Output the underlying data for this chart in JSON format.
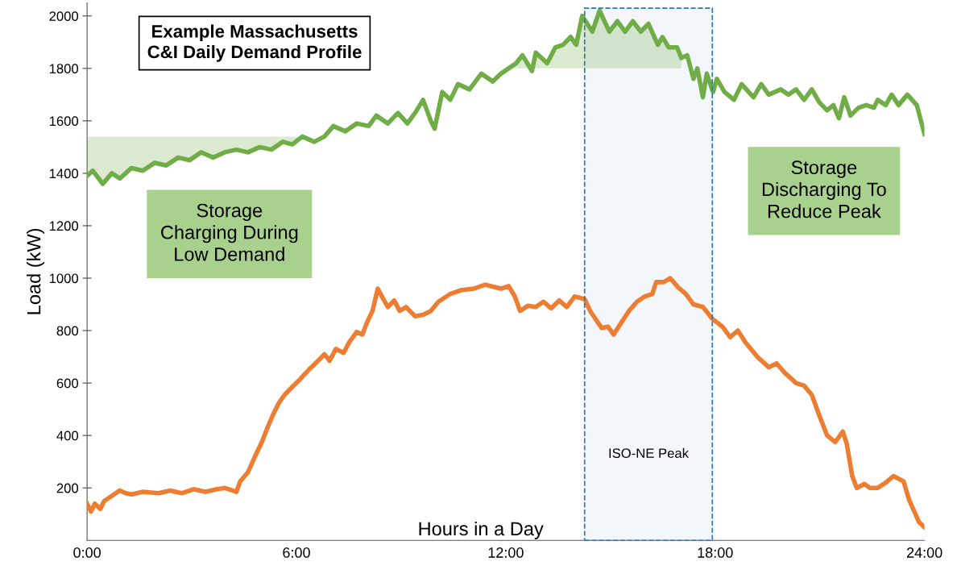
{
  "chart_data": {
    "type": "line",
    "title": "Example Massachusetts\nC&I Daily Demand Profile",
    "xlabel": "Hours in a Day",
    "ylabel": "Load (kW)",
    "annotations": [
      "Storage\nCharging During\nLow Demand",
      "Storage\nDischarging To\nReduce Peak"
    ],
    "xlim": [
      0,
      24
    ],
    "xticks": [
      {
        "value": 0,
        "label": "0:00"
      },
      {
        "value": 6,
        "label": "6:00"
      },
      {
        "value": 12,
        "label": "12:00"
      },
      {
        "value": 18,
        "label": "18:00"
      },
      {
        "value": 24,
        "label": "24:00"
      }
    ],
    "ylim": [
      0,
      2050
    ],
    "yticks": [
      200,
      400,
      600,
      800,
      1000,
      1200,
      1400,
      1600,
      1800,
      2000
    ],
    "grid": false,
    "legend": false,
    "marker": "none",
    "line_style": "solid",
    "bands": [
      {
        "axis": "x",
        "from": 14.26,
        "to": 17.92,
        "label": "ISO-NE Peak",
        "color": "#2e75b6"
      }
    ],
    "series": [
      {
        "color": "#70ad47",
        "x": [
          0,
          0.16,
          0.45,
          0.71,
          0.94,
          1.27,
          1.6,
          1.94,
          2.27,
          2.61,
          2.94,
          3.27,
          3.61,
          3.94,
          4.28,
          4.61,
          4.95,
          5.28,
          5.61,
          5.88,
          6.17,
          6.51,
          6.8,
          7.06,
          7.4,
          7.73,
          8.07,
          8.29,
          8.62,
          8.91,
          9.18,
          9.4,
          9.63,
          9.85,
          9.96,
          10.18,
          10.41,
          10.63,
          10.96,
          11.3,
          11.63,
          11.86,
          12.08,
          12.3,
          12.48,
          12.75,
          12.86,
          13.19,
          13.42,
          13.64,
          13.86,
          14.02,
          14.19,
          14.48,
          14.69,
          14.97,
          15.2,
          15.42,
          15.64,
          15.87,
          16.09,
          16.36,
          16.49,
          16.67,
          16.91,
          17.03,
          17.2,
          17.38,
          17.49,
          17.65,
          17.76,
          17.94,
          18.05,
          18.27,
          18.54,
          18.76,
          19.1,
          19.32,
          19.54,
          19.88,
          20.1,
          20.32,
          20.55,
          20.77,
          20.99,
          21.21,
          21.39,
          21.55,
          21.7,
          21.88,
          22.11,
          22.33,
          22.55,
          22.66,
          22.89,
          23.06,
          23.26,
          23.51,
          23.78,
          24
        ],
        "values": [
          1390,
          1410,
          1360,
          1400,
          1380,
          1420,
          1410,
          1440,
          1430,
          1460,
          1450,
          1480,
          1460,
          1480,
          1490,
          1480,
          1500,
          1490,
          1520,
          1510,
          1540,
          1520,
          1540,
          1580,
          1560,
          1590,
          1580,
          1620,
          1590,
          1630,
          1590,
          1630,
          1680,
          1600,
          1570,
          1710,
          1680,
          1740,
          1720,
          1780,
          1750,
          1780,
          1800,
          1820,
          1850,
          1790,
          1860,
          1820,
          1880,
          1890,
          1920,
          1890,
          2000,
          1940,
          2020,
          1940,
          1980,
          1940,
          1980,
          1940,
          1970,
          1890,
          1920,
          1880,
          1880,
          1840,
          1850,
          1760,
          1800,
          1690,
          1780,
          1710,
          1760,
          1710,
          1680,
          1740,
          1690,
          1740,
          1700,
          1720,
          1700,
          1720,
          1680,
          1720,
          1670,
          1640,
          1660,
          1610,
          1690,
          1620,
          1650,
          1660,
          1650,
          1680,
          1660,
          1700,
          1660,
          1700,
          1660,
          1550
        ],
        "lower": [
          1390,
          1410,
          1360,
          1400,
          1380,
          1420,
          1410,
          1440,
          1430,
          1460,
          1450,
          1480,
          1460,
          1480,
          1490,
          1480,
          1500,
          1490,
          1520,
          1510,
          1540,
          null,
          null,
          null,
          null,
          null,
          null,
          null,
          null,
          null,
          null,
          null,
          null,
          null,
          null,
          null,
          null,
          null,
          null,
          null,
          null,
          null,
          1800,
          1800,
          1800,
          1800,
          1800,
          1800,
          1800,
          1800,
          1800,
          1800,
          1800,
          1800,
          1800,
          1800,
          1800,
          1800,
          1800,
          1800,
          1800,
          1800,
          1800,
          1800,
          1800,
          1800,
          null,
          null,
          null,
          null,
          null,
          null,
          null,
          null,
          null,
          null,
          null,
          null,
          null,
          null,
          null,
          null,
          null,
          null,
          null,
          null,
          null,
          null,
          null,
          null,
          null,
          null,
          null,
          null,
          null,
          null,
          null,
          null,
          null,
          null
        ],
        "upper": [
          1540,
          1540,
          1540,
          1540,
          1540,
          1540,
          1540,
          1540,
          1540,
          1540,
          1540,
          1540,
          1540,
          1540,
          1540,
          1540,
          1540,
          1540,
          1540,
          1540,
          1540,
          null,
          null,
          null,
          null,
          null,
          null,
          null,
          null,
          null,
          null,
          null,
          null,
          null,
          null,
          null,
          null,
          null,
          null,
          null,
          null,
          null,
          1800,
          1820,
          1850,
          1790,
          1860,
          1820,
          1880,
          1890,
          1920,
          1890,
          2000,
          1940,
          2020,
          1940,
          1980,
          1940,
          1980,
          1940,
          1970,
          1890,
          1920,
          1880,
          1880,
          1840,
          null,
          null,
          null,
          null,
          null,
          null,
          null,
          null,
          null,
          null,
          null,
          null,
          null,
          null,
          null,
          null,
          null,
          null,
          null,
          null,
          null,
          null,
          null,
          null,
          null,
          null,
          null,
          null,
          null,
          null,
          null,
          null,
          null,
          null
        ]
      },
      {
        "color": "#ed7d31",
        "x": [
          0,
          0.11,
          0.22,
          0.38,
          0.49,
          0.71,
          0.94,
          1.11,
          1.27,
          1.6,
          2.05,
          2.38,
          2.72,
          3.05,
          3.39,
          3.72,
          3.94,
          4.17,
          4.28,
          4.39,
          4.61,
          4.83,
          5.01,
          5.17,
          5.35,
          5.5,
          5.66,
          5.88,
          6.11,
          6.35,
          6.62,
          6.8,
          6.95,
          7.13,
          7.35,
          7.51,
          7.73,
          7.89,
          8.02,
          8.18,
          8.33,
          8.47,
          8.62,
          8.8,
          8.96,
          9.14,
          9.4,
          9.63,
          9.85,
          10.07,
          10.41,
          10.74,
          11.08,
          11.41,
          11.86,
          12.08,
          12.26,
          12.41,
          12.64,
          12.86,
          13.08,
          13.3,
          13.53,
          13.75,
          13.97,
          14.26,
          14.42,
          14.57,
          14.75,
          14.93,
          15.09,
          15.31,
          15.53,
          15.76,
          15.98,
          16.2,
          16.31,
          16.53,
          16.71,
          16.94,
          17.16,
          17.38,
          17.65,
          17.92,
          18.21,
          18.43,
          18.65,
          18.87,
          19.21,
          19.54,
          19.76,
          19.99,
          20.32,
          20.55,
          20.77,
          20.99,
          21.21,
          21.44,
          21.66,
          21.77,
          21.93,
          22.06,
          22.28,
          22.44,
          22.66,
          22.89,
          23.11,
          23.4,
          23.56,
          23.84,
          24
        ],
        "values": [
          140,
          110,
          140,
          120,
          150,
          170,
          190,
          180,
          175,
          185,
          180,
          190,
          180,
          195,
          185,
          195,
          200,
          190,
          185,
          225,
          260,
          325,
          375,
          430,
          485,
          525,
          555,
          585,
          615,
          650,
          685,
          710,
          685,
          730,
          715,
          755,
          795,
          785,
          830,
          875,
          960,
          925,
          890,
          915,
          875,
          890,
          855,
          860,
          875,
          910,
          940,
          955,
          960,
          975,
          960,
          970,
          930,
          875,
          895,
          890,
          910,
          885,
          915,
          890,
          930,
          920,
          875,
          845,
          810,
          815,
          785,
          830,
          875,
          910,
          930,
          940,
          985,
          985,
          1000,
          965,
          940,
          900,
          890,
          845,
          815,
          775,
          800,
          755,
          700,
          660,
          675,
          640,
          600,
          590,
          555,
          475,
          400,
          375,
          415,
          370,
          245,
          200,
          215,
          200,
          200,
          220,
          245,
          225,
          155,
          70,
          50
        ]
      }
    ]
  }
}
